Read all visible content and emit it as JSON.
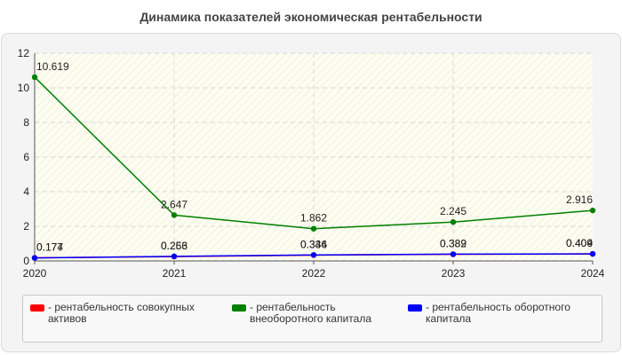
{
  "chart_data": {
    "type": "line",
    "title": "Динамика показателей экономическая рентабельности",
    "x": [
      "2020",
      "2021",
      "2022",
      "2023",
      "2024"
    ],
    "ylim": [
      0,
      12
    ],
    "yticks": [
      "0",
      "2",
      "4",
      "6",
      "8",
      "10",
      "12"
    ],
    "grid": true,
    "legend_position": "bottom",
    "series": [
      {
        "name": "- рентабельность совокупных активов",
        "color": "#ff0000",
        "values": [
          0.177,
          0.253,
          0.336,
          0.382,
          0.404
        ],
        "labels": [
          "0.177",
          "0.253",
          "0.336",
          "0.382",
          "0.404"
        ]
      },
      {
        "name": "- рентабельность внеоборотного капитала",
        "color": "#008000",
        "values": [
          10.619,
          2.647,
          1.862,
          2.245,
          2.916
        ],
        "labels": [
          "10.619",
          "2.647",
          "1.862",
          "2.245",
          "2.916"
        ]
      },
      {
        "name": "- рентабельность оборотного капитала",
        "color": "#0000ff",
        "values": [
          0.174,
          0.266,
          0.344,
          0.389,
          0.409
        ],
        "labels": [
          "0.174",
          "0.266",
          "0.344",
          "0.389",
          "0.409"
        ]
      }
    ]
  }
}
